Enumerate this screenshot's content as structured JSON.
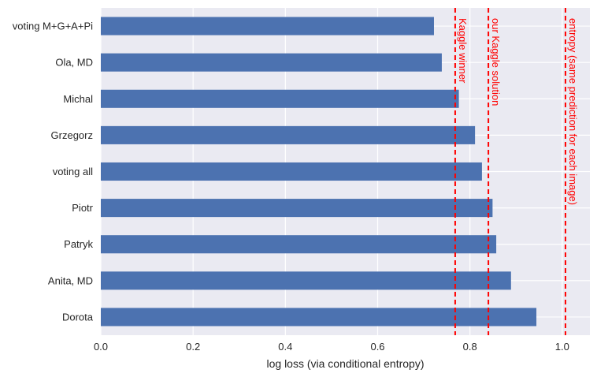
{
  "chart_data": {
    "type": "bar",
    "orientation": "horizontal",
    "title": "",
    "xlabel": "log loss (via conditional entropy)",
    "ylabel": "",
    "xlim": [
      0.0,
      1.06
    ],
    "grid": true,
    "categories": [
      "voting M+G+A+Pi",
      "Ola, MD",
      "Michal",
      "Grzegorz",
      "voting all",
      "Piotr",
      "Patryk",
      "Anita, MD",
      "Dorota"
    ],
    "values": [
      0.722,
      0.739,
      0.776,
      0.811,
      0.826,
      0.849,
      0.857,
      0.889,
      0.944
    ],
    "x_ticks": [
      0.0,
      0.2,
      0.4,
      0.6,
      0.8,
      1.0
    ],
    "x_tick_labels": [
      "0.0",
      "0.2",
      "0.4",
      "0.6",
      "0.8",
      "1.0"
    ],
    "reference_lines": [
      {
        "x": 0.768,
        "label": "Kaggle winner"
      },
      {
        "x": 0.84,
        "label": "our Kaggle solution"
      },
      {
        "x": 1.007,
        "label": "entropy (same prediction for each image)"
      }
    ],
    "colors": {
      "bar": "#4c72b0",
      "background": "#eaeaf2",
      "grid": "#ffffff",
      "reference": "#ff0000",
      "text": "#262626"
    }
  }
}
